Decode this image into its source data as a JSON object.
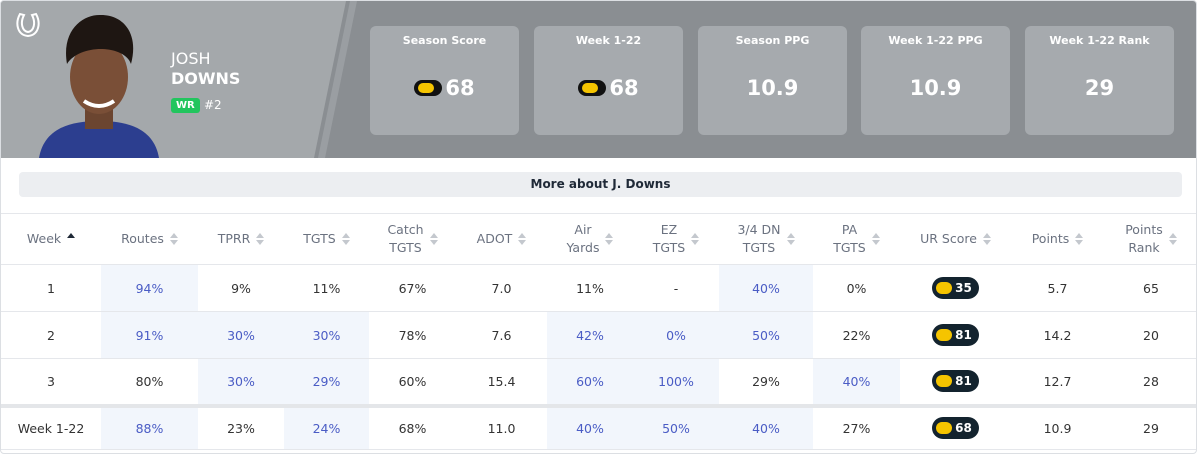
{
  "header": {
    "first_name": "JOSH",
    "last_name": "DOWNS",
    "position": "WR",
    "number": "#2",
    "stats": [
      {
        "label": "Season Score",
        "value": "68",
        "ur_icon": true
      },
      {
        "label": "Week 1-22",
        "value": "68",
        "ur_icon": true
      },
      {
        "label": "Season PPG",
        "value": "10.9",
        "ur_icon": false
      },
      {
        "label": "Week 1-22 PPG",
        "value": "10.9",
        "ur_icon": false
      },
      {
        "label": "Week 1-22 Rank",
        "value": "29",
        "ur_icon": false
      }
    ]
  },
  "more_button": "More about J. Downs",
  "table": {
    "columns": [
      [
        "Week"
      ],
      [
        "Routes"
      ],
      [
        "TPRR"
      ],
      [
        "TGTS"
      ],
      [
        "Catch",
        "TGTS"
      ],
      [
        "ADOT"
      ],
      [
        "Air",
        "Yards"
      ],
      [
        "EZ",
        "TGTS"
      ],
      [
        "3/4 DN",
        "TGTS"
      ],
      [
        "PA",
        "TGTS"
      ],
      [
        "UR Score"
      ],
      [
        "Points"
      ],
      [
        "Points",
        "Rank"
      ]
    ],
    "sort_column": 0,
    "badge_column": 10,
    "rows": [
      {
        "cells": [
          "1",
          "94%",
          "9%",
          "11%",
          "67%",
          "7.0",
          "11%",
          "-",
          "40%",
          "0%",
          "35",
          "5.7",
          "65"
        ],
        "highlighted": [
          1,
          8
        ]
      },
      {
        "cells": [
          "2",
          "91%",
          "30%",
          "30%",
          "78%",
          "7.6",
          "42%",
          "0%",
          "50%",
          "22%",
          "81",
          "14.2",
          "20"
        ],
        "highlighted": [
          1,
          2,
          3,
          6,
          7,
          8
        ]
      },
      {
        "cells": [
          "3",
          "80%",
          "30%",
          "29%",
          "60%",
          "15.4",
          "60%",
          "100%",
          "29%",
          "40%",
          "81",
          "12.7",
          "28"
        ],
        "highlighted": [
          2,
          3,
          6,
          7,
          9
        ]
      }
    ],
    "summary": {
      "cells": [
        "Week 1-22",
        "88%",
        "23%",
        "24%",
        "68%",
        "11.0",
        "40%",
        "50%",
        "40%",
        "27%",
        "68",
        "10.9",
        "29"
      ],
      "highlighted": [
        1,
        3,
        6,
        7,
        8
      ]
    }
  }
}
